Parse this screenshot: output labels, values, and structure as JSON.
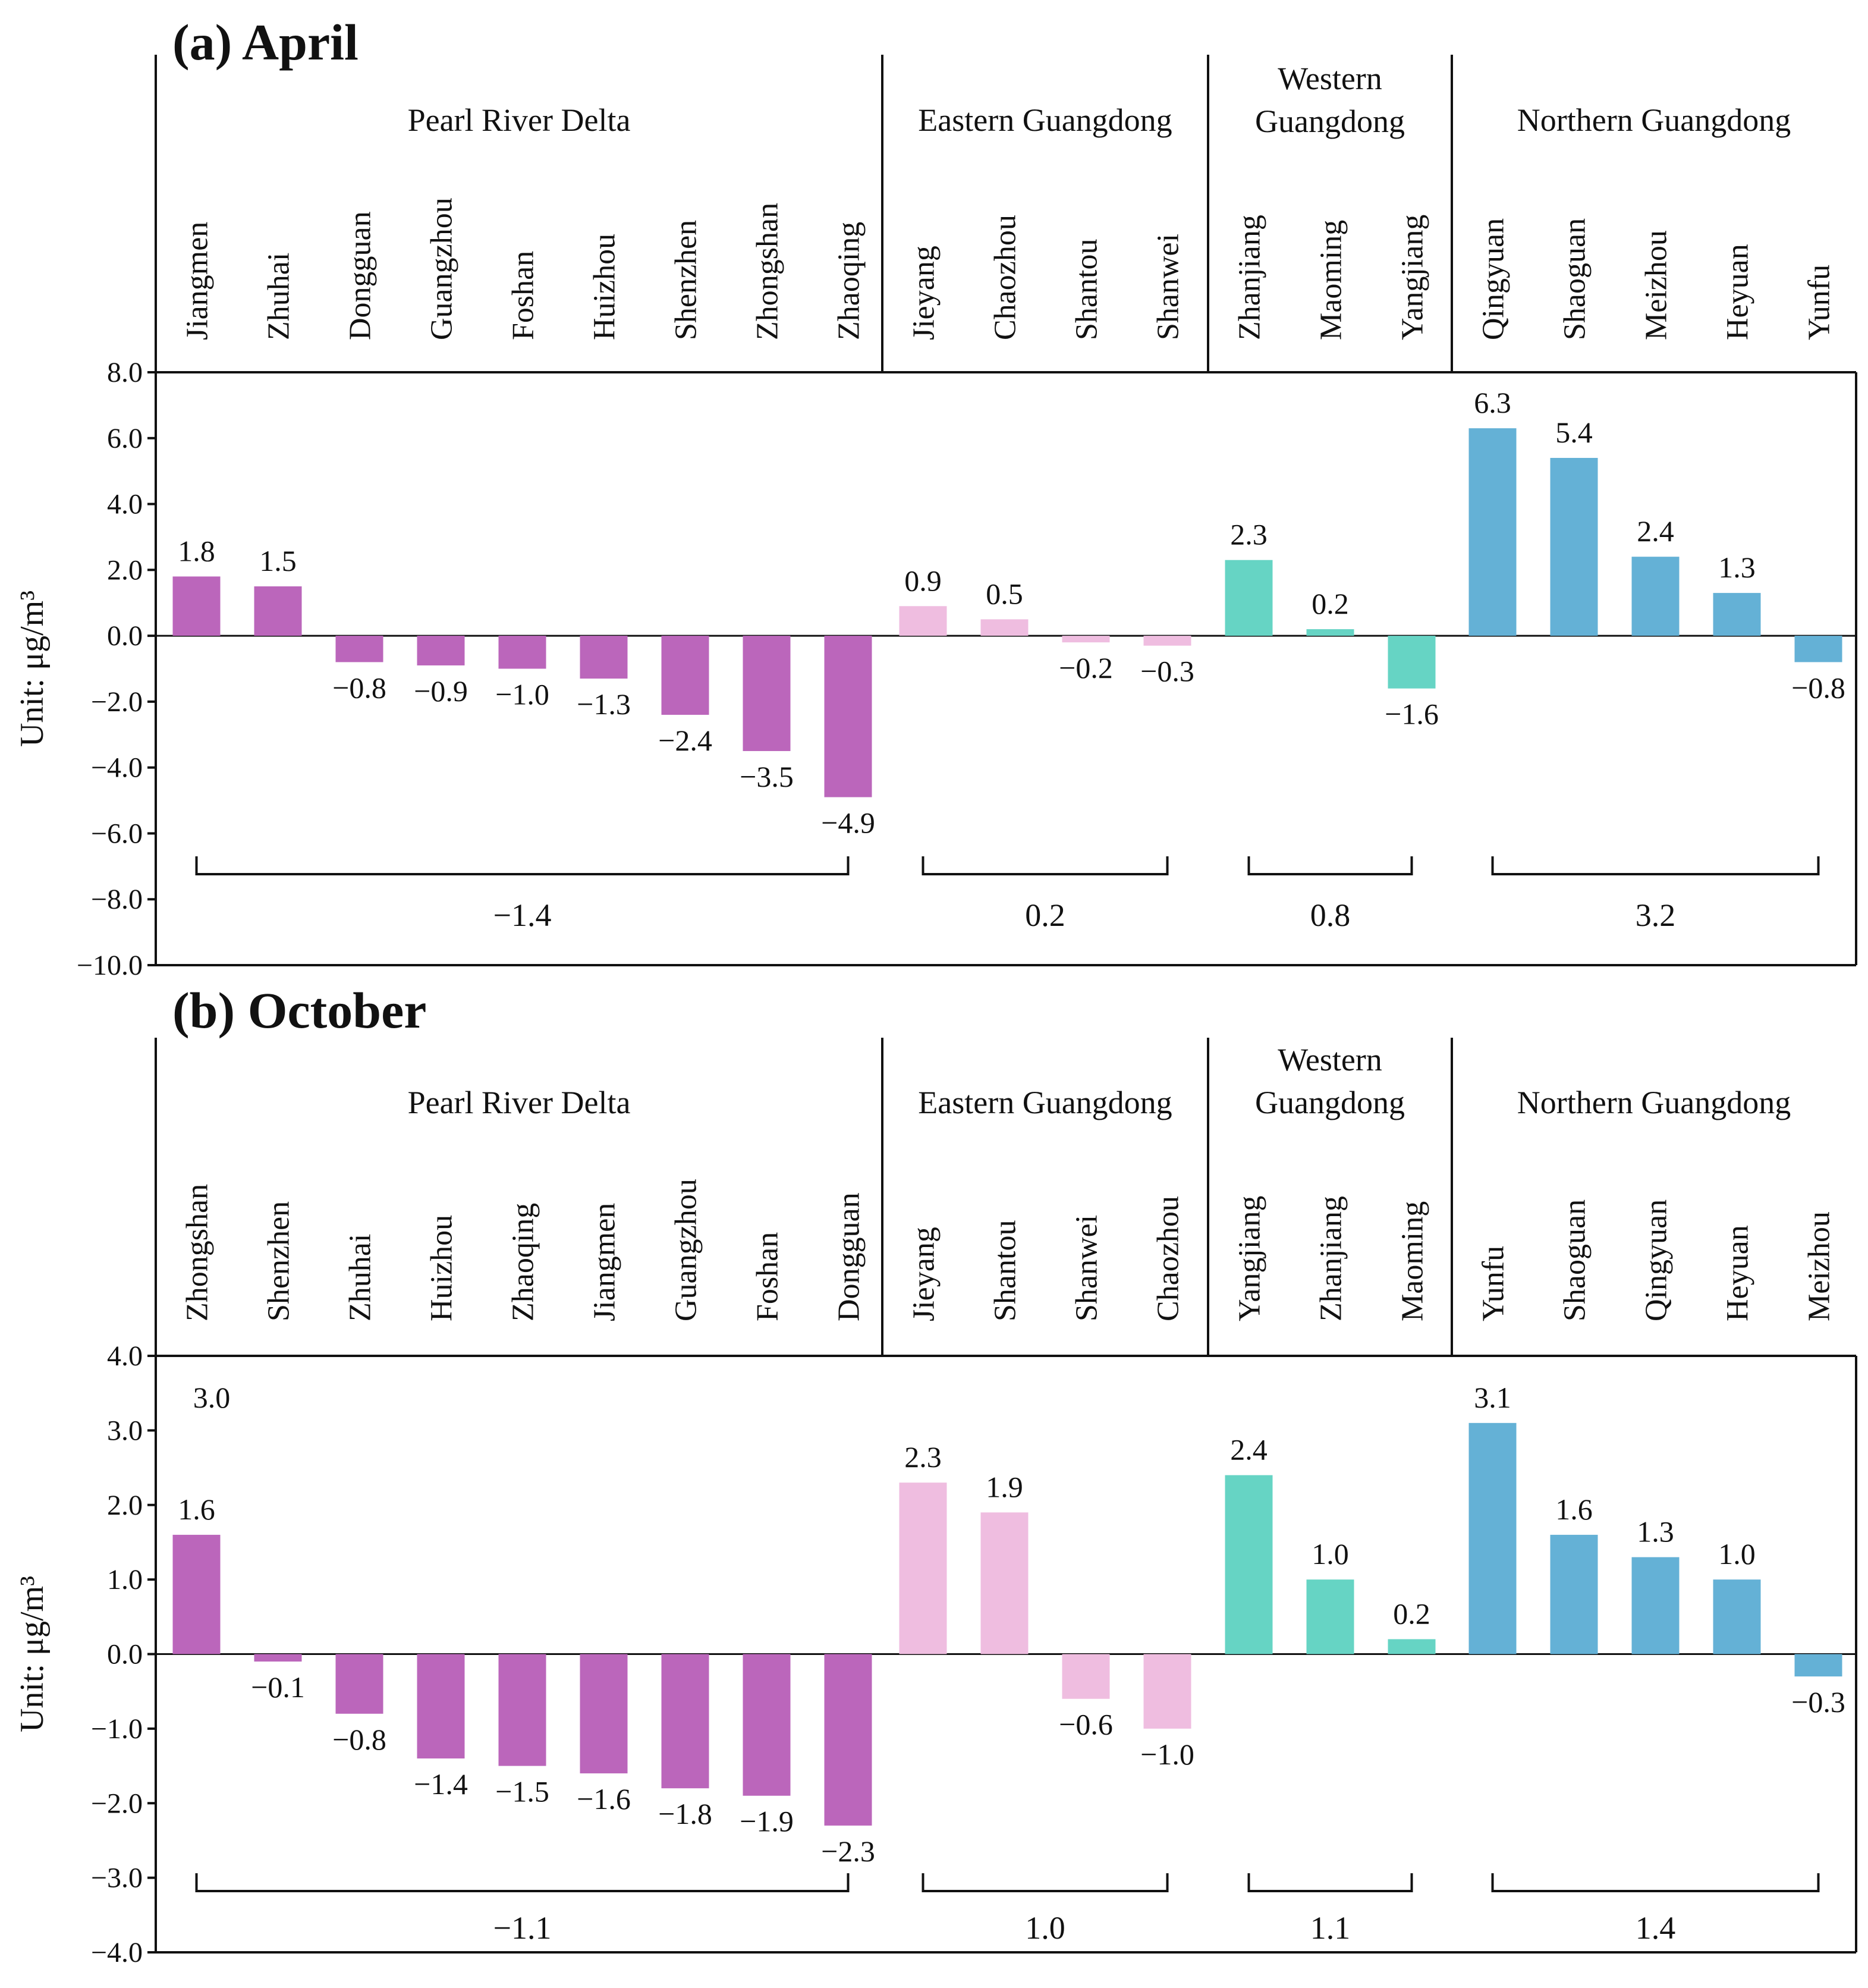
{
  "colors": {
    "Pearl River Delta": "#bb66bb",
    "Eastern Guangdong": "#efbde0",
    "Western Guangdong": "#66d4c4",
    "Northern Guangdong": "#64b1d6"
  },
  "chart_data": [
    {
      "type": "bar",
      "title": "(a) April",
      "ylabel": "Unit:  μg/m³",
      "ylim": [
        -10.0,
        8.0
      ],
      "yticks": [
        "8.0",
        "6.0",
        "4.0",
        "2.0",
        "0.0",
        "−2.0",
        "−4.0",
        "−6.0",
        "−8.0",
        "−10.0"
      ],
      "yticks_values": [
        8,
        6,
        4,
        2,
        0,
        -2,
        -4,
        -6,
        -8,
        -10
      ],
      "groups": [
        {
          "region": "Pearl River Delta",
          "region_lines": [
            "Pearl River Delta"
          ],
          "categories": [
            "Jiangmen",
            "Zhuhai",
            "Dongguan",
            "Guangzhou",
            "Foshan",
            "Huizhou",
            "Shenzhen",
            "Zhongshan",
            "Zhaoqing"
          ],
          "values": [
            1.8,
            1.5,
            -0.8,
            -0.9,
            -1.0,
            -1.3,
            -2.4,
            -3.5,
            -4.9
          ],
          "labels": [
            "1.8",
            "1.5",
            "−0.8",
            "−0.9",
            "−1.0",
            "−1.3",
            "−2.4",
            "−3.5",
            "−4.9"
          ],
          "average": "−1.4"
        },
        {
          "region": "Eastern Guangdong",
          "region_lines": [
            "Eastern Guangdong"
          ],
          "categories": [
            "Jieyang",
            "Chaozhou",
            "Shantou",
            "Shanwei"
          ],
          "values": [
            0.9,
            0.5,
            -0.2,
            -0.3
          ],
          "labels": [
            "0.9",
            "0.5",
            "−0.2",
            "−0.3"
          ],
          "average": "0.2"
        },
        {
          "region": "Western Guangdong",
          "region_lines": [
            "Western",
            "Guangdong"
          ],
          "categories": [
            "Zhanjiang",
            "Maoming",
            "Yangjiang"
          ],
          "values": [
            2.3,
            0.2,
            -1.6
          ],
          "labels": [
            "2.3",
            "0.2",
            "−1.6"
          ],
          "average": "0.8"
        },
        {
          "region": "Northern Guangdong",
          "region_lines": [
            "Northern Guangdong"
          ],
          "categories": [
            "Qingyuan",
            "Shaoguan",
            "Meizhou",
            "Heyuan",
            "Yunfu"
          ],
          "values": [
            6.3,
            5.4,
            2.4,
            1.3,
            -0.8
          ],
          "labels": [
            "6.3",
            "5.4",
            "2.4",
            "1.3",
            "−0.8"
          ],
          "average": "3.2"
        }
      ]
    },
    {
      "type": "bar",
      "title": "(b) October",
      "ylabel": "Unit:  μg/m³",
      "ylim": [
        -4.0,
        4.0
      ],
      "yticks": [
        "4.0",
        "3.0",
        "2.0",
        "1.0",
        "0.0",
        "−1.0",
        "−2.0",
        "−3.0",
        "−4.0"
      ],
      "yticks_values": [
        4,
        3,
        2,
        1,
        0,
        -1,
        -2,
        -3,
        -4
      ],
      "groups": [
        {
          "region": "Pearl River Delta",
          "region_lines": [
            "Pearl River Delta"
          ],
          "categories": [
            "Zhongshan",
            "Shenzhen",
            "Zhuhai",
            "Huizhou",
            "Zhaoqing",
            "Jiangmen",
            "Guangzhou",
            "Foshan",
            "Dongguan"
          ],
          "values": [
            1.6,
            -0.1,
            -0.8,
            -1.4,
            -1.5,
            -1.6,
            -1.8,
            -1.9,
            -2.3
          ],
          "labels": [
            "1.6",
            "−0.1",
            "−0.8",
            "−1.4",
            "−1.5",
            "−1.6",
            "−1.8",
            "−1.9",
            "−2.3"
          ],
          "average": "−1.1"
        },
        {
          "region": "Eastern Guangdong",
          "region_lines": [
            "Eastern Guangdong"
          ],
          "categories": [
            "Jieyang",
            "Shantou",
            "Shanwei",
            "Chaozhou"
          ],
          "values": [
            2.3,
            1.9,
            -0.6,
            -1.0
          ],
          "labels": [
            "2.3",
            "1.9",
            "−0.6",
            "−1.0"
          ],
          "average": "1.0"
        },
        {
          "region": "Western Guangdong",
          "region_lines": [
            "Western",
            "Guangdong"
          ],
          "categories": [
            "Yangjiang",
            "Zhanjiang",
            "Maoming"
          ],
          "values": [
            2.4,
            1.0,
            0.2
          ],
          "labels": [
            "2.4",
            "1.0",
            "0.2"
          ],
          "average": "1.1"
        },
        {
          "region": "Northern Guangdong",
          "region_lines": [
            "Northern Guangdong"
          ],
          "categories": [
            "Yunfu",
            "Shaoguan",
            "Qingyuan",
            "Heyuan",
            "Meizhou"
          ],
          "values": [
            3.1,
            1.6,
            1.3,
            1.0,
            -0.3
          ],
          "labels": [
            "3.1",
            "1.6",
            "1.3",
            "1.0",
            "−0.3"
          ],
          "average": "1.4"
        }
      ],
      "annotations": [
        {
          "text": "3.0",
          "near": "Zhongshan"
        }
      ]
    }
  ]
}
